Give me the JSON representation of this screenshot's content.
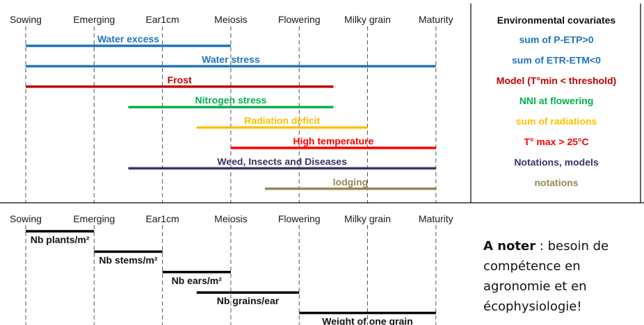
{
  "stages": [
    "Sowing",
    "Emerging",
    "Ear1cm",
    "Meiosis",
    "Flowering",
    "Milky grain",
    "Maturity"
  ],
  "factors": [
    {
      "name": "Water excess",
      "start": 0,
      "end": 3,
      "color": "#1e73be"
    },
    {
      "name": "Water stress",
      "start": 0,
      "end": 6,
      "color": "#1e73be"
    },
    {
      "name": "Frost",
      "start": 0,
      "end": 4.5,
      "color": "#c00000"
    },
    {
      "name": "Nitrogen stress",
      "start": 1.5,
      "end": 4.5,
      "color": "#00b050"
    },
    {
      "name": "Radiation deficit",
      "start": 2.5,
      "end": 5,
      "color": "#ffc000"
    },
    {
      "name": "High temperature",
      "start": 3,
      "end": 6,
      "color": "#ff0000"
    },
    {
      "name": "Weed, Insects and Diseases",
      "start": 1.5,
      "end": 6,
      "color": "#3f3163"
    },
    {
      "name": "lodging",
      "start": 3.5,
      "end": 6,
      "color": "#948a54"
    }
  ],
  "env_panel": {
    "title": "Environmental covariates",
    "items": [
      {
        "text": "sum of P-ETP>0",
        "color": "#1e73be"
      },
      {
        "text": "sum of ETR-ETM<0",
        "color": "#1e73be"
      },
      {
        "text": "Model (T°min < threshold)",
        "color": "#c00000"
      },
      {
        "text": "NNI at flowering",
        "color": "#00b050"
      },
      {
        "text": "sum of radiations",
        "color": "#ffc000"
      },
      {
        "text": "T° max > 25°C",
        "color": "#ff0000"
      },
      {
        "text": "Notations, models",
        "color": "#3f3163"
      },
      {
        "text": "notations",
        "color": "#948a54"
      }
    ]
  },
  "components": [
    {
      "name": "Nb plants/m²",
      "start": 0,
      "end": 1
    },
    {
      "name": "Nb stems/m²",
      "start": 1,
      "end": 2
    },
    {
      "name": "Nb ears/m²",
      "start": 2,
      "end": 3
    },
    {
      "name": "Nb grains/ear",
      "start": 2.5,
      "end": 4
    },
    {
      "name": "Weight of one grain",
      "start": 4,
      "end": 6
    }
  ],
  "note": {
    "bold": "A noter",
    "rest": " : besoin de compétence en agronomie et en écophysiologie!"
  }
}
